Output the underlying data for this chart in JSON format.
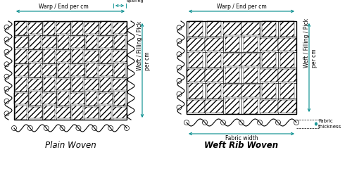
{
  "bg_color": "#ffffff",
  "line_color": "#000000",
  "arrow_color": "#008B8B",
  "title_left": "Plain Woven",
  "title_right": "Weft Rib Woven",
  "label_warp": "Warp / End per cm",
  "label_warp_spacing": "Warp yarn\nspacing",
  "label_weft": "Weft / Filling / Pick",
  "label_per_cm": "per cm",
  "label_fabric_width": "Fabric width",
  "label_fabric_thickness": "Fabric\nthickness",
  "font_size_label": 5.5,
  "font_size_title": 8.5
}
